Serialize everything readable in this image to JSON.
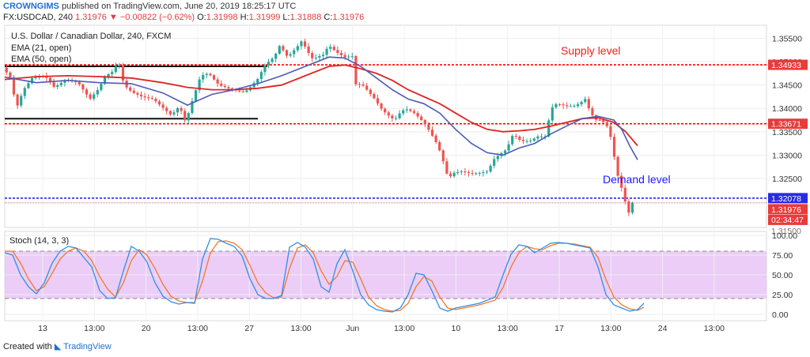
{
  "header": {
    "author": "CROWNGIMS",
    "published": "published on TradingView.com, June 20, 2019 18:25:17 UTC",
    "symbol": "FX:USDCAD, 240",
    "last": "1.31976",
    "change": "−0.00822 (−0.62%)",
    "open_label": "O:",
    "open": "1.31998",
    "high_label": "H:",
    "high": "1.31999",
    "low_label": "L:",
    "low": "1.31888",
    "close_label": "C:",
    "close": "1.31976"
  },
  "legend": {
    "title": "U.S. Dollar / Canadian Dollar, 240, FXCM",
    "ema21": "EMA (21, open)",
    "ema50": "EMA (50, open)"
  },
  "annotations": {
    "supply": "Supply level",
    "demand": "Demand level"
  },
  "price_labels": {
    "supply": "1.34933",
    "mid": "1.33671",
    "demand": "1.32078",
    "last": "1.31976",
    "timer": "02:34:47",
    "partial": "1.31500"
  },
  "stoch": {
    "label": "Stoch (14, 3, 3)",
    "ticks": [
      "100.00",
      "75.00",
      "50.00",
      "25.00",
      "0.00"
    ]
  },
  "footer": {
    "created": "Created with",
    "brand": "TradingView"
  },
  "colors": {
    "up": "#26a69a",
    "down": "#ef5350",
    "ema21": "#4a5bb8",
    "ema50": "#e02424",
    "supply_line": "#ff0000",
    "demand_line": "#1414ff",
    "stoch_k": "#2f8fe6",
    "stoch_d": "#f07a2a",
    "stoch_band": "#e7c4f7",
    "price_tag": "#e83b3b",
    "demand_tag": "#2a2ae6"
  },
  "chart_data": {
    "type": "candlestick",
    "price_axis": {
      "ticks": [
        "1.35500",
        "1.35000",
        "1.34500",
        "1.34000",
        "1.33500",
        "1.33000",
        "1.32500"
      ],
      "range": [
        1.3145,
        1.3578
      ]
    },
    "time_axis": {
      "ticks": [
        "13",
        "13:00",
        "20",
        "13:00",
        "27",
        "13:00",
        "Jun",
        "13:00",
        "10",
        "13:00",
        "17",
        "13:00",
        "24",
        "13:00"
      ]
    },
    "levels": {
      "supply": 1.34933,
      "mid": 1.33671,
      "demand": 1.32078,
      "last": 1.31976
    },
    "range_box": {
      "top": 1.349,
      "bottom": 1.3378
    },
    "ohlc_last": {
      "open": 1.31998,
      "high": 1.31999,
      "low": 1.31888,
      "close": 1.31976
    },
    "close_path": [
      [
        0,
        1.3487
      ],
      [
        10,
        1.3465
      ],
      [
        17,
        1.34
      ],
      [
        26,
        1.344
      ],
      [
        37,
        1.3465
      ],
      [
        53,
        1.347
      ],
      [
        65,
        1.3445
      ],
      [
        80,
        1.3462
      ],
      [
        95,
        1.3455
      ],
      [
        110,
        1.342
      ],
      [
        120,
        1.344
      ],
      [
        130,
        1.347
      ],
      [
        140,
        1.348
      ],
      [
        145,
        1.35
      ],
      [
        148,
        1.349
      ],
      [
        153,
        1.345
      ],
      [
        163,
        1.3435
      ],
      [
        176,
        1.3425
      ],
      [
        190,
        1.342
      ],
      [
        200,
        1.3405
      ],
      [
        213,
        1.3385
      ],
      [
        223,
        1.3405
      ],
      [
        231,
        1.337
      ],
      [
        240,
        1.342
      ],
      [
        250,
        1.347
      ],
      [
        260,
        1.3475
      ],
      [
        273,
        1.345
      ],
      [
        290,
        1.344
      ],
      [
        303,
        1.3435
      ],
      [
        310,
        1.344
      ],
      [
        323,
        1.3465
      ],
      [
        330,
        1.349
      ],
      [
        336,
        1.35
      ],
      [
        343,
        1.351
      ],
      [
        350,
        1.3535
      ],
      [
        360,
        1.351
      ],
      [
        371,
        1.353
      ],
      [
        378,
        1.3545
      ],
      [
        385,
        1.3522
      ],
      [
        392,
        1.3505
      ],
      [
        397,
        1.351
      ],
      [
        405,
        1.3515
      ],
      [
        412,
        1.3535
      ],
      [
        422,
        1.352
      ],
      [
        432,
        1.351
      ],
      [
        442,
        1.3512
      ],
      [
        447,
        1.344
      ],
      [
        452,
        1.3455
      ],
      [
        460,
        1.344
      ],
      [
        470,
        1.342
      ],
      [
        478,
        1.34
      ],
      [
        485,
        1.3388
      ],
      [
        495,
        1.3375
      ],
      [
        504,
        1.3395
      ],
      [
        511,
        1.3398
      ],
      [
        520,
        1.339
      ],
      [
        532,
        1.337
      ],
      [
        540,
        1.335
      ],
      [
        550,
        1.332
      ],
      [
        556,
        1.329
      ],
      [
        563,
        1.325
      ],
      [
        570,
        1.3262
      ],
      [
        580,
        1.3265
      ],
      [
        593,
        1.326
      ],
      [
        603,
        1.3262
      ],
      [
        613,
        1.3265
      ],
      [
        620,
        1.329
      ],
      [
        627,
        1.33
      ],
      [
        635,
        1.331
      ],
      [
        640,
        1.3325
      ],
      [
        645,
        1.3345
      ],
      [
        655,
        1.333
      ],
      [
        666,
        1.333
      ],
      [
        676,
        1.334
      ],
      [
        686,
        1.334
      ],
      [
        693,
        1.34
      ],
      [
        700,
        1.341
      ],
      [
        713,
        1.3405
      ],
      [
        723,
        1.3405
      ],
      [
        730,
        1.3412
      ],
      [
        736,
        1.342
      ],
      [
        743,
        1.339
      ],
      [
        750,
        1.3375
      ],
      [
        756,
        1.3375
      ],
      [
        763,
        1.3365
      ],
      [
        770,
        1.333
      ],
      [
        775,
        1.327
      ],
      [
        780,
        1.324
      ],
      [
        785,
        1.3215
      ],
      [
        790,
        1.317
      ],
      [
        795,
        1.3198
      ]
    ],
    "ema21": [
      [
        0,
        1.3467
      ],
      [
        40,
        1.3455
      ],
      [
        80,
        1.346
      ],
      [
        120,
        1.3455
      ],
      [
        160,
        1.3453
      ],
      [
        200,
        1.3433
      ],
      [
        231,
        1.3407
      ],
      [
        262,
        1.343
      ],
      [
        290,
        1.344
      ],
      [
        320,
        1.3453
      ],
      [
        350,
        1.347
      ],
      [
        380,
        1.349
      ],
      [
        410,
        1.351
      ],
      [
        430,
        1.3508
      ],
      [
        450,
        1.349
      ],
      [
        470,
        1.3465
      ],
      [
        490,
        1.344
      ],
      [
        510,
        1.342
      ],
      [
        530,
        1.341
      ],
      [
        550,
        1.339
      ],
      [
        570,
        1.3355
      ],
      [
        590,
        1.3325
      ],
      [
        610,
        1.3305
      ],
      [
        630,
        1.33
      ],
      [
        650,
        1.3315
      ],
      [
        670,
        1.3325
      ],
      [
        690,
        1.3345
      ],
      [
        710,
        1.3362
      ],
      [
        730,
        1.3378
      ],
      [
        750,
        1.3383
      ],
      [
        770,
        1.3375
      ],
      [
        780,
        1.3355
      ],
      [
        790,
        1.332
      ],
      [
        800,
        1.329
      ]
    ],
    "ema50": [
      [
        0,
        1.3462
      ],
      [
        40,
        1.3468
      ],
      [
        80,
        1.347
      ],
      [
        120,
        1.3468
      ],
      [
        160,
        1.3465
      ],
      [
        200,
        1.3455
      ],
      [
        231,
        1.3445
      ],
      [
        262,
        1.344
      ],
      [
        290,
        1.344
      ],
      [
        320,
        1.3443
      ],
      [
        350,
        1.345
      ],
      [
        380,
        1.347
      ],
      [
        410,
        1.349
      ],
      [
        430,
        1.3493
      ],
      [
        450,
        1.3485
      ],
      [
        470,
        1.3475
      ],
      [
        490,
        1.346
      ],
      [
        510,
        1.344
      ],
      [
        530,
        1.3425
      ],
      [
        550,
        1.341
      ],
      [
        570,
        1.339
      ],
      [
        590,
        1.337
      ],
      [
        610,
        1.3355
      ],
      [
        630,
        1.335
      ],
      [
        650,
        1.3352
      ],
      [
        670,
        1.3355
      ],
      [
        690,
        1.3362
      ],
      [
        710,
        1.337
      ],
      [
        730,
        1.3378
      ],
      [
        750,
        1.338
      ],
      [
        770,
        1.337
      ],
      [
        785,
        1.335
      ],
      [
        800,
        1.332
      ]
    ],
    "stoch_k": [
      [
        0,
        78
      ],
      [
        10,
        75
      ],
      [
        20,
        50
      ],
      [
        30,
        35
      ],
      [
        40,
        26
      ],
      [
        50,
        40
      ],
      [
        60,
        65
      ],
      [
        70,
        80
      ],
      [
        80,
        86
      ],
      [
        90,
        84
      ],
      [
        100,
        72
      ],
      [
        110,
        60
      ],
      [
        120,
        30
      ],
      [
        130,
        20
      ],
      [
        140,
        21
      ],
      [
        150,
        55
      ],
      [
        160,
        86
      ],
      [
        170,
        80
      ],
      [
        180,
        66
      ],
      [
        190,
        40
      ],
      [
        200,
        23
      ],
      [
        210,
        16
      ],
      [
        220,
        13
      ],
      [
        230,
        15
      ],
      [
        240,
        14
      ],
      [
        250,
        70
      ],
      [
        260,
        96
      ],
      [
        270,
        95
      ],
      [
        280,
        90
      ],
      [
        290,
        86
      ],
      [
        300,
        74
      ],
      [
        310,
        45
      ],
      [
        320,
        25
      ],
      [
        330,
        20
      ],
      [
        340,
        20
      ],
      [
        350,
        24
      ],
      [
        360,
        85
      ],
      [
        370,
        91
      ],
      [
        380,
        85
      ],
      [
        390,
        70
      ],
      [
        400,
        35
      ],
      [
        410,
        28
      ],
      [
        420,
        64
      ],
      [
        430,
        82
      ],
      [
        440,
        55
      ],
      [
        450,
        25
      ],
      [
        460,
        12
      ],
      [
        470,
        6
      ],
      [
        480,
        4
      ],
      [
        490,
        3
      ],
      [
        500,
        8
      ],
      [
        510,
        25
      ],
      [
        520,
        52
      ],
      [
        530,
        50
      ],
      [
        540,
        30
      ],
      [
        550,
        8
      ],
      [
        560,
        4
      ],
      [
        570,
        8
      ],
      [
        580,
        10
      ],
      [
        590,
        12
      ],
      [
        600,
        14
      ],
      [
        610,
        18
      ],
      [
        620,
        22
      ],
      [
        630,
        50
      ],
      [
        640,
        76
      ],
      [
        650,
        88
      ],
      [
        660,
        86
      ],
      [
        670,
        78
      ],
      [
        680,
        84
      ],
      [
        690,
        90
      ],
      [
        700,
        91
      ],
      [
        710,
        90
      ],
      [
        720,
        88
      ],
      [
        730,
        86
      ],
      [
        740,
        84
      ],
      [
        750,
        60
      ],
      [
        760,
        25
      ],
      [
        770,
        12
      ],
      [
        780,
        8
      ],
      [
        790,
        4
      ],
      [
        800,
        6
      ],
      [
        808,
        14
      ]
    ],
    "stoch_d": [
      [
        0,
        80
      ],
      [
        10,
        80
      ],
      [
        20,
        65
      ],
      [
        30,
        45
      ],
      [
        40,
        30
      ],
      [
        50,
        35
      ],
      [
        60,
        52
      ],
      [
        70,
        70
      ],
      [
        80,
        80
      ],
      [
        90,
        84
      ],
      [
        100,
        80
      ],
      [
        110,
        68
      ],
      [
        120,
        48
      ],
      [
        130,
        32
      ],
      [
        140,
        22
      ],
      [
        150,
        40
      ],
      [
        160,
        68
      ],
      [
        170,
        82
      ],
      [
        180,
        75
      ],
      [
        190,
        58
      ],
      [
        200,
        38
      ],
      [
        210,
        23
      ],
      [
        220,
        17
      ],
      [
        230,
        15
      ],
      [
        240,
        15
      ],
      [
        250,
        42
      ],
      [
        260,
        78
      ],
      [
        270,
        92
      ],
      [
        280,
        93
      ],
      [
        290,
        90
      ],
      [
        300,
        82
      ],
      [
        310,
        62
      ],
      [
        320,
        40
      ],
      [
        330,
        27
      ],
      [
        340,
        21
      ],
      [
        350,
        22
      ],
      [
        360,
        58
      ],
      [
        370,
        84
      ],
      [
        380,
        88
      ],
      [
        390,
        78
      ],
      [
        400,
        55
      ],
      [
        410,
        38
      ],
      [
        420,
        48
      ],
      [
        430,
        68
      ],
      [
        440,
        66
      ],
      [
        450,
        45
      ],
      [
        460,
        22
      ],
      [
        470,
        11
      ],
      [
        480,
        6
      ],
      [
        490,
        4
      ],
      [
        500,
        5
      ],
      [
        510,
        14
      ],
      [
        520,
        35
      ],
      [
        530,
        48
      ],
      [
        540,
        42
      ],
      [
        550,
        22
      ],
      [
        560,
        8
      ],
      [
        570,
        6
      ],
      [
        580,
        8
      ],
      [
        590,
        10
      ],
      [
        600,
        12
      ],
      [
        610,
        15
      ],
      [
        620,
        18
      ],
      [
        630,
        34
      ],
      [
        640,
        60
      ],
      [
        650,
        78
      ],
      [
        660,
        86
      ],
      [
        670,
        83
      ],
      [
        680,
        82
      ],
      [
        690,
        87
      ],
      [
        700,
        90
      ],
      [
        710,
        90
      ],
      [
        720,
        89
      ],
      [
        730,
        87
      ],
      [
        740,
        85
      ],
      [
        750,
        72
      ],
      [
        760,
        44
      ],
      [
        770,
        22
      ],
      [
        780,
        12
      ],
      [
        790,
        7
      ],
      [
        800,
        5
      ],
      [
        808,
        9
      ]
    ]
  }
}
